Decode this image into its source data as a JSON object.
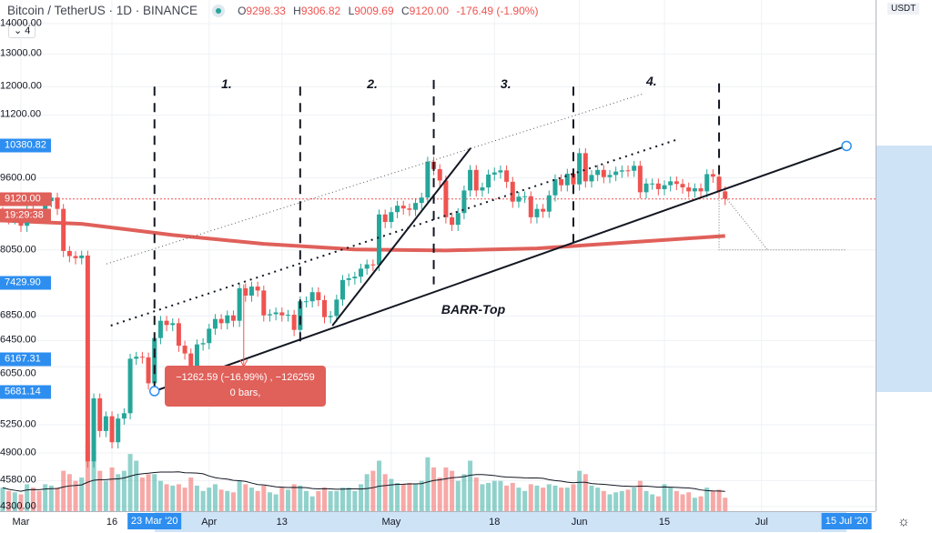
{
  "header": {
    "symbol": "Bitcoin / TetherUS · 1D · BINANCE",
    "open_label": "O",
    "open": "9298.33",
    "high_label": "H",
    "high": "9306.82",
    "low_label": "L",
    "low": "9009.69",
    "close_label": "C",
    "close": "9120.00",
    "change": "-176.49 (-1.90%)",
    "indicator_toggle": "⌄ 4"
  },
  "axis": {
    "unit": "USDT",
    "price_labels": [
      "14000.00",
      "13000.00",
      "12000.00",
      "11200.00",
      "9600.00",
      "8050.00",
      "6850.00",
      "6450.00",
      "6050.00",
      "5250.00",
      "4900.00",
      "4580.00",
      "4300.00"
    ],
    "tags": [
      {
        "text": "10380.82",
        "price": 10380.82,
        "color": "#2d8ef0"
      },
      {
        "text": "9120.00",
        "price": 9120,
        "color": "#e0605a"
      },
      {
        "text": "19:29:38",
        "price": 8760,
        "color": "#e0605a"
      },
      {
        "text": "7429.90",
        "price": 7429.9,
        "color": "#2d8ef0"
      },
      {
        "text": "6167.31",
        "price": 6167.31,
        "color": "#2d8ef0"
      },
      {
        "text": "5681.14",
        "price": 5681.14,
        "color": "#2d8ef0"
      }
    ],
    "time_labels": [
      {
        "t": "Mar",
        "d": 0
      },
      {
        "t": "16",
        "d": 15
      },
      {
        "t": "Apr",
        "d": 31
      },
      {
        "t": "13",
        "d": 43
      },
      {
        "t": "May",
        "d": 61
      },
      {
        "t": "18",
        "d": 78
      },
      {
        "t": "Jun",
        "d": 92
      },
      {
        "t": "15",
        "d": 106
      },
      {
        "t": "Jul",
        "d": 122
      }
    ],
    "time_tags": [
      {
        "t": "23 Mar '20",
        "d": 22
      },
      {
        "t": "15 Jul '20",
        "d": 136
      }
    ]
  },
  "colors": {
    "up": "#26a69a",
    "down": "#ef5350",
    "ma": "#e0605a",
    "accent": "#2d8ef0"
  },
  "chart_data": {
    "type": "candlestick",
    "start_day": -3,
    "closes": [
      8790,
      8700,
      8780,
      8540,
      8900,
      8760,
      8750,
      9070,
      9150,
      8900,
      8030,
      7930,
      7890,
      7940,
      4800,
      5600,
      5170,
      5360,
      5030,
      5330,
      5400,
      6170,
      6200,
      6190,
      5810,
      6490,
      6770,
      6700,
      6730,
      6370,
      6250,
      5880,
      6390,
      6410,
      6640,
      6800,
      6730,
      6860,
      6770,
      7330,
      7200,
      7360,
      7290,
      6860,
      6880,
      6910,
      6860,
      6870,
      6620,
      7100,
      7100,
      7260,
      7120,
      6830,
      6850,
      7130,
      7480,
      7510,
      7540,
      7690,
      7770,
      7760,
      8780,
      8620,
      8830,
      8970,
      8910,
      8880,
      9030,
      9150,
      9990,
      9810,
      9540,
      8720,
      8560,
      8810,
      9310,
      9790,
      9310,
      9380,
      9680,
      9730,
      9780,
      9510,
      9060,
      9170,
      9180,
      8720,
      8900,
      8840,
      9200,
      9570,
      9430,
      9700,
      9450,
      10200,
      9520,
      9670,
      9790,
      9620,
      9670,
      9750,
      9780,
      9770,
      9890,
      9270,
      9470,
      9470,
      9340,
      9430,
      9520,
      9460,
      9380,
      9290,
      9360,
      9290,
      9690,
      9630,
      9290,
      9120
    ],
    "volumes": [
      35,
      30,
      28,
      25,
      40,
      35,
      30,
      40,
      38,
      35,
      60,
      55,
      45,
      50,
      100,
      90,
      60,
      45,
      65,
      55,
      60,
      85,
      75,
      50,
      55,
      55,
      45,
      40,
      38,
      40,
      35,
      50,
      38,
      30,
      35,
      40,
      32,
      30,
      28,
      45,
      40,
      35,
      30,
      38,
      28,
      25,
      35,
      32,
      40,
      38,
      30,
      22,
      30,
      35,
      30,
      30,
      35,
      35,
      30,
      40,
      55,
      60,
      75,
      55,
      48,
      42,
      40,
      42,
      40,
      45,
      80,
      65,
      50,
      65,
      60,
      45,
      55,
      75,
      50,
      40,
      42,
      45,
      45,
      38,
      42,
      35,
      30,
      40,
      38,
      35,
      40,
      38,
      35,
      35,
      40,
      60,
      55,
      38,
      35,
      30,
      25,
      28,
      30,
      32,
      35,
      45,
      30,
      25,
      22,
      40,
      35,
      30,
      25,
      28,
      20,
      22,
      35,
      30,
      32,
      20
    ],
    "ma_points": [
      [
        -3,
        8650
      ],
      [
        10,
        8580
      ],
      [
        25,
        8350
      ],
      [
        40,
        8170
      ],
      [
        55,
        8060
      ],
      [
        70,
        8040
      ],
      [
        85,
        8080
      ],
      [
        100,
        8200
      ],
      [
        116,
        8330
      ]
    ],
    "ylim": [
      4300,
      14000
    ]
  },
  "drawings": {
    "support_line": [
      [
        22,
        5700
      ],
      [
        136,
        10380.82
      ]
    ],
    "steep_line": [
      [
        51.3,
        6690
      ],
      [
        74.1,
        10330
      ]
    ],
    "upper_dotted": [
      [
        14.8,
        6690
      ],
      [
        108.2,
        10550
      ]
    ],
    "thin_dotted": [
      [
        14.1,
        7780
      ],
      [
        102.6,
        11800
      ]
    ],
    "verticals": [
      {
        "d": 22,
        "from": 12000,
        "to": 5700
      },
      {
        "d": 46,
        "from": 12000,
        "to": 6400
      },
      {
        "d": 68,
        "from": 12200,
        "to": 7400
      },
      {
        "d": 91,
        "from": 12000,
        "to": 8200
      },
      {
        "d": 115,
        "from": 12100,
        "to": 9600
      }
    ],
    "wave_labels": [
      {
        "t": "1.",
        "d": 33,
        "p": 12050
      },
      {
        "t": "2.",
        "d": 57,
        "p": 12050
      },
      {
        "t": "3.",
        "d": 79,
        "p": 12050
      },
      {
        "t": "4.",
        "d": 103,
        "p": 12150
      }
    ],
    "pattern_label": {
      "t": "BARR-Top",
      "d": 70,
      "p": 6950
    },
    "measure": {
      "line1": "−1262.59 (−16.99%) , −126259",
      "line2": "0 bars,"
    }
  }
}
